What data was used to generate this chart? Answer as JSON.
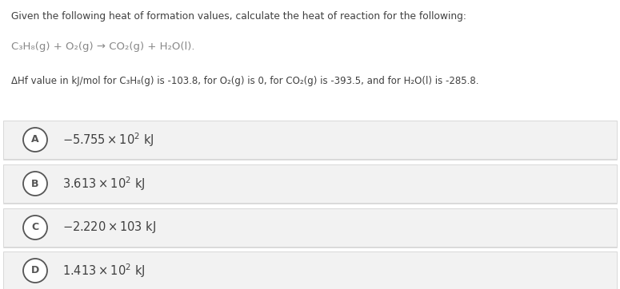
{
  "bg_color": "#ffffff",
  "option_bg_color": "#f2f2f2",
  "text_color": "#404040",
  "circle_edge_color": "#555555",
  "circle_face_color": "#ffffff",
  "title_line1": "Given the following heat of formation values, calculate the heat of reaction for the following:",
  "reaction": "C₃H₈(g) + O₂(g) → CO₂(g) + H₂O(l).",
  "delta_line": "ΔHf value in kJ/mol for C₃H₈(g) is -103.8, for O₂(g) is 0, for CO₂(g) is -393.5, and for H₂O(l) is -285.8.",
  "options": [
    {
      "label": "A",
      "main": "-5.755 × 10",
      "sup": "2",
      "unit": " kJ"
    },
    {
      "label": "B",
      "main": "3.613 × 10",
      "sup": "2",
      "unit": " kJ"
    },
    {
      "label": "C",
      "main": "-2.220 × 103",
      "sup": "",
      "unit": " kJ"
    },
    {
      "label": "D",
      "main": "1.413 × 10",
      "sup": "2",
      "unit": " kJ"
    }
  ],
  "fig_width": 7.75,
  "fig_height": 3.62,
  "dpi": 100
}
